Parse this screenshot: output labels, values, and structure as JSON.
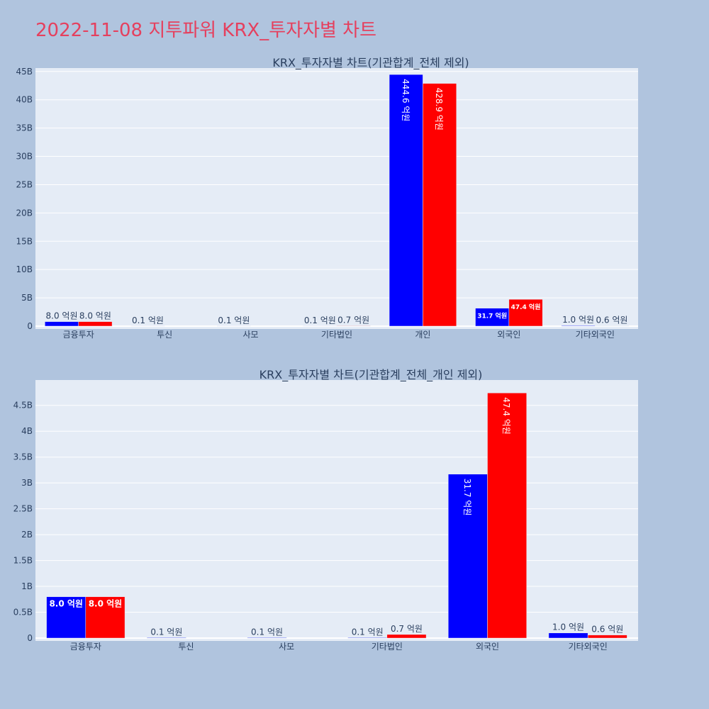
{
  "page_title": "2022-11-08 지투파워 KRX_투자자별 차트",
  "colors": {
    "buy": "#0000ff",
    "sell": "#ff0000",
    "plot_bg": "#e5ecf6",
    "page_bg": "#b0c4de",
    "title": "#e5405e"
  },
  "chart_data": [
    {
      "type": "bar",
      "title": "KRX_투자자별 차트(기관합계_전체 제외)",
      "categories": [
        "금융투자",
        "투신",
        "사모",
        "기타법인",
        "개인",
        "외국인",
        "기타외국인"
      ],
      "series": [
        {
          "values": [
            800000000,
            10000000,
            10000000,
            10000000,
            44460000000,
            3170000000,
            100000000
          ],
          "labels": [
            "8.0 억원",
            "0.1 억원",
            "0.1 억원",
            "0.1 억원",
            "444.6 억원",
            "31.7 억원",
            "1.0 억원"
          ]
        },
        {
          "values": [
            800000000,
            0,
            0,
            70000000,
            42890000000,
            4740000000,
            60000000
          ],
          "labels": [
            "8.0 억원",
            "",
            "",
            "0.7 억원",
            "428.9 억원",
            "47.4 억원",
            "0.6 억원"
          ]
        }
      ],
      "yticks": [
        0,
        5000000000,
        10000000000,
        15000000000,
        20000000000,
        25000000000,
        30000000000,
        35000000000,
        40000000000,
        45000000000
      ],
      "ytick_labels": [
        "0",
        "5B",
        "10B",
        "15B",
        "20B",
        "25B",
        "30B",
        "35B",
        "40B",
        "45B"
      ],
      "ylim": [
        0,
        45600000000
      ]
    },
    {
      "type": "bar",
      "title": "KRX_투자자별 차트(기관합계_전체_개인 제외)",
      "categories": [
        "금융투자",
        "투신",
        "사모",
        "기타법인",
        "외국인",
        "기타외국인"
      ],
      "series": [
        {
          "values": [
            800000000,
            10000000,
            10000000,
            10000000,
            3170000000,
            100000000
          ],
          "labels": [
            "8.0 억원",
            "0.1 억원",
            "0.1 억원",
            "0.1 억원",
            "31.7 억원",
            "1.0 억원"
          ]
        },
        {
          "values": [
            800000000,
            0,
            0,
            70000000,
            4740000000,
            60000000
          ],
          "labels": [
            "8.0 억원",
            "",
            "",
            "0.7 억원",
            "47.4 억원",
            "0.6 억원"
          ]
        }
      ],
      "yticks": [
        0,
        500000000,
        1000000000,
        1500000000,
        2000000000,
        2500000000,
        3000000000,
        3500000000,
        4000000000,
        4500000000
      ],
      "ytick_labels": [
        "0",
        "0.5B",
        "1B",
        "1.5B",
        "2B",
        "2.5B",
        "3B",
        "3.5B",
        "4B",
        "4.5B"
      ],
      "ylim": [
        0,
        4990000000
      ]
    }
  ]
}
